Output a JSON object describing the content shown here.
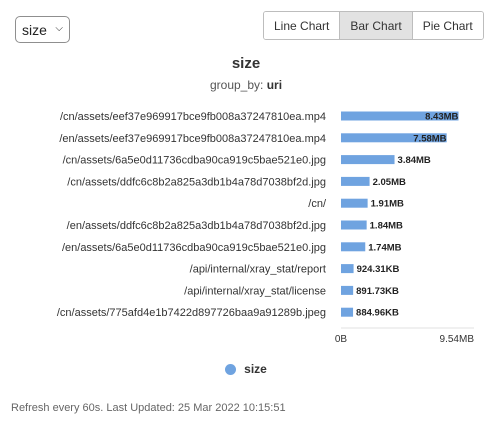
{
  "metric_select": {
    "value": "size"
  },
  "chart_buttons": [
    {
      "label": "Line Chart",
      "active": false
    },
    {
      "label": "Bar Chart",
      "active": true
    },
    {
      "label": "Pie Chart",
      "active": false
    }
  ],
  "colors": {
    "bar": "#6fa3e0",
    "bar_edge": "#4f8ad6"
  },
  "chart_data": {
    "type": "bar",
    "orientation": "horizontal",
    "title": "size",
    "subtitle_key": "group_by:",
    "subtitle_value": "uri",
    "categories": [
      "/cn/assets/eef37e969917bce9fb008a37247810ea.mp4",
      "/en/assets/eef37e969917bce9fb008a37247810ea.mp4",
      "/cn/assets/6a5e0d11736cdba90ca919c5bae521e0.jpg",
      "/cn/assets/ddfc6c8b2a825a3db1b4a78d7038bf2d.jpg",
      "/cn/",
      "/en/assets/ddfc6c8b2a825a3db1b4a78d7038bf2d.jpg",
      "/en/assets/6a5e0d11736cdba90ca919c5bae521e0.jpg",
      "/api/internal/xray_stat/report",
      "/api/internal/xray_stat/license",
      "/cn/assets/775afd4e1b7422d897726baa9a91289b.jpeg"
    ],
    "series": [
      {
        "name": "size",
        "values_mb": [
          8.43,
          7.58,
          3.84,
          2.05,
          1.91,
          1.84,
          1.74,
          0.9026,
          0.8708,
          0.8642
        ],
        "value_labels": [
          "8.43MB",
          "7.58MB",
          "3.84MB",
          "2.05MB",
          "1.91MB",
          "1.84MB",
          "1.74MB",
          "924.31KB",
          "891.73KB",
          "884.96KB"
        ]
      }
    ],
    "xlim_mb": [
      0,
      9.54
    ],
    "x_tick_labels": [
      "0B",
      "9.54MB"
    ],
    "grid": false,
    "legend_position": "bottom"
  },
  "footer_text": "Refresh every 60s. Last Updated: 25 Mar 2022 10:15:51"
}
